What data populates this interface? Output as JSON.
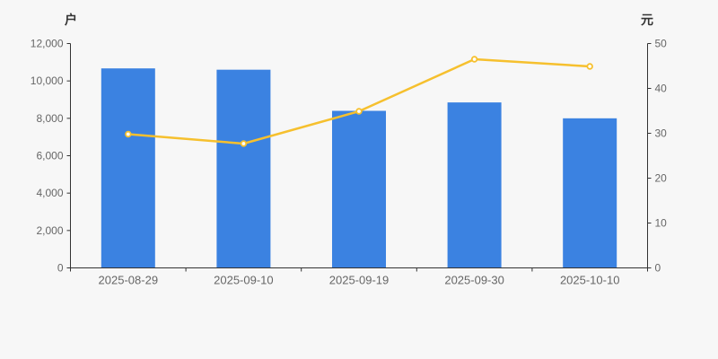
{
  "chart_data": {
    "type": "bar+line",
    "dual_axis": true,
    "categories": [
      "2025-08-29",
      "2025-09-10",
      "2025-09-19",
      "2025-09-30",
      "2025-10-10"
    ],
    "series": [
      {
        "type": "bar",
        "axis": "left",
        "unit": "户",
        "values": [
          10670,
          10600,
          8400,
          8850,
          8000
        ],
        "color": "#3B82E1"
      },
      {
        "type": "line",
        "axis": "right",
        "unit": "元",
        "values": [
          29.8,
          27.7,
          34.9,
          46.5,
          44.9
        ],
        "color": "#F6C02E",
        "marker": "hollow-circle",
        "marker_fill": "#FFFFFF"
      }
    ],
    "left_axis": {
      "unit": "户",
      "min": 0,
      "max": 12000,
      "tick_step": 2000,
      "tick_labels": [
        "0",
        "2,000",
        "4,000",
        "6,000",
        "8,000",
        "10,000",
        "12,000"
      ]
    },
    "right_axis": {
      "unit": "元",
      "min": 0,
      "max": 50,
      "tick_step": 10,
      "tick_labels": [
        "0",
        "10",
        "20",
        "30",
        "40",
        "50"
      ]
    },
    "grid": false,
    "legend": false,
    "title": "",
    "colors": {
      "background": "#F7F7F7",
      "axis_line": "#333333",
      "tick_label": "#666666",
      "unit_label": "#333333"
    }
  }
}
